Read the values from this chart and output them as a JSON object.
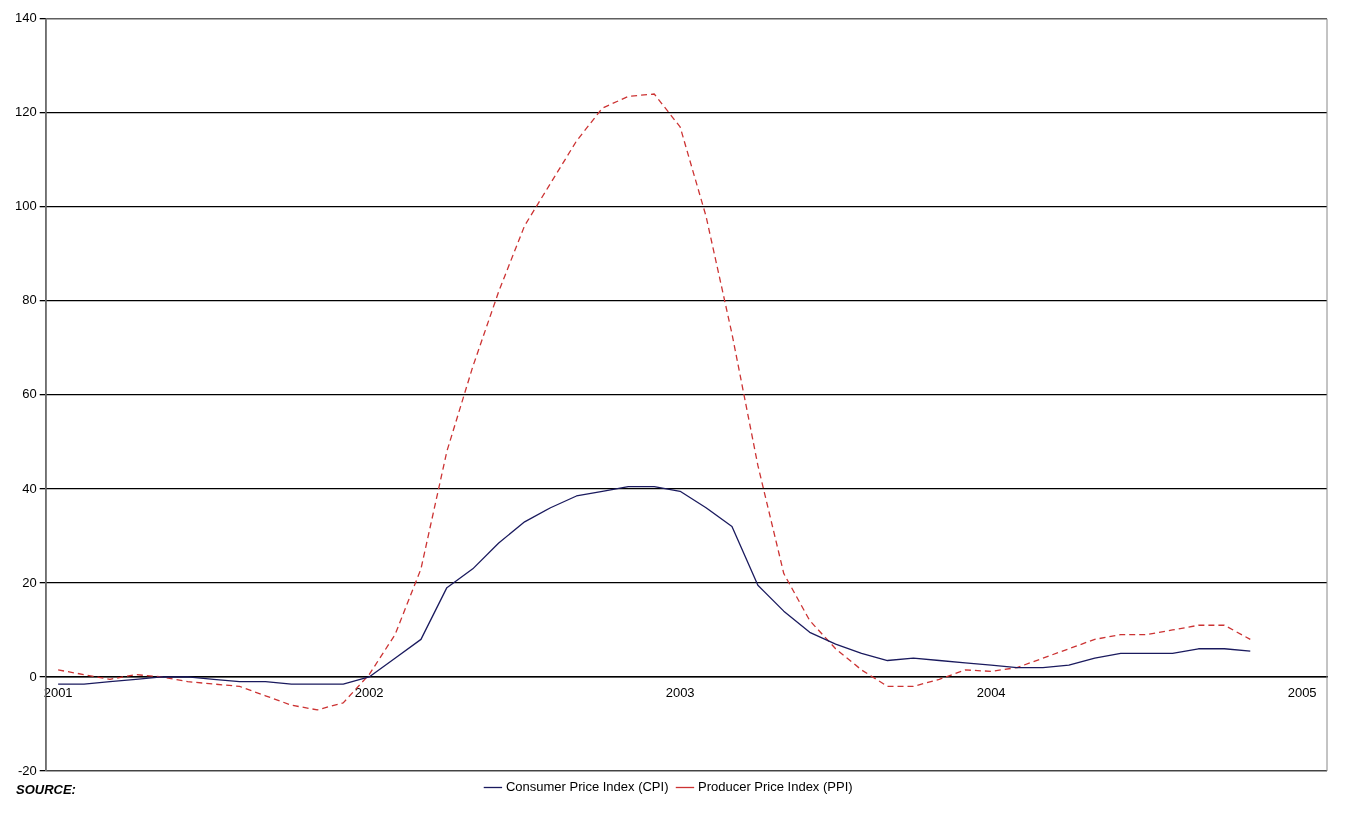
{
  "chart_data": {
    "type": "line",
    "x": [
      2001,
      2001.0833,
      2001.1667,
      2001.25,
      2001.3333,
      2001.4167,
      2001.5,
      2001.5833,
      2001.6667,
      2001.75,
      2001.8333,
      2001.9167,
      2002,
      2002.0833,
      2002.1667,
      2002.25,
      2002.3333,
      2002.4167,
      2002.5,
      2002.5833,
      2002.6667,
      2002.75,
      2002.8333,
      2002.9167,
      2003,
      2003.0833,
      2003.1667,
      2003.25,
      2003.3333,
      2003.4167,
      2003.5,
      2003.5833,
      2003.6667,
      2003.75,
      2003.8333,
      2003.9167,
      2004,
      2004.0833,
      2004.1667,
      2004.25,
      2004.3333,
      2004.4167,
      2004.5,
      2004.5833,
      2004.6667,
      2004.75,
      2004.8333
    ],
    "series": [
      {
        "name": "Consumer Price Index (CPI)",
        "color": "#1a1a5e",
        "line_style": "solid",
        "values": [
          -1.5,
          -1.5,
          -1,
          -0.5,
          0,
          0,
          -0.5,
          -1,
          -1,
          -1.5,
          -1.5,
          -1.5,
          0,
          4,
          8,
          19,
          23,
          28.5,
          33,
          36,
          38.5,
          39.5,
          40.5,
          40.5,
          39.5,
          36,
          32,
          19.5,
          14,
          9.5,
          7,
          5,
          3.5,
          4,
          3.5,
          3,
          2.5,
          2,
          2,
          2.5,
          4,
          5,
          5,
          5,
          6,
          6,
          5.5
        ]
      },
      {
        "name": "Producer Price Index (PPI)",
        "color": "#cc3333",
        "line_style": "dashed",
        "values": [
          1.5,
          0.5,
          -0.5,
          0.5,
          0,
          -1,
          -1.5,
          -2,
          -4,
          -6,
          -7,
          -5.5,
          0.5,
          9,
          23,
          48,
          66,
          82,
          96,
          105,
          114,
          121,
          123.5,
          124,
          117,
          98,
          73,
          45,
          22,
          12,
          6,
          1.5,
          -2,
          -2,
          -0.5,
          1.5,
          1.2,
          2,
          4,
          6,
          8,
          9,
          9,
          10,
          11,
          11,
          8
        ]
      }
    ],
    "xlim": [
      2000.96,
      2005.08
    ],
    "xticks": [
      2001,
      2002,
      2003,
      2004,
      2005
    ],
    "ylim": [
      -20,
      140
    ],
    "yticks": [
      -20,
      0,
      20,
      40,
      60,
      80,
      100,
      120,
      140
    ],
    "grid": "y",
    "legend": "bottom",
    "marker": "none",
    "annotations": [
      "SOURCE:"
    ]
  }
}
